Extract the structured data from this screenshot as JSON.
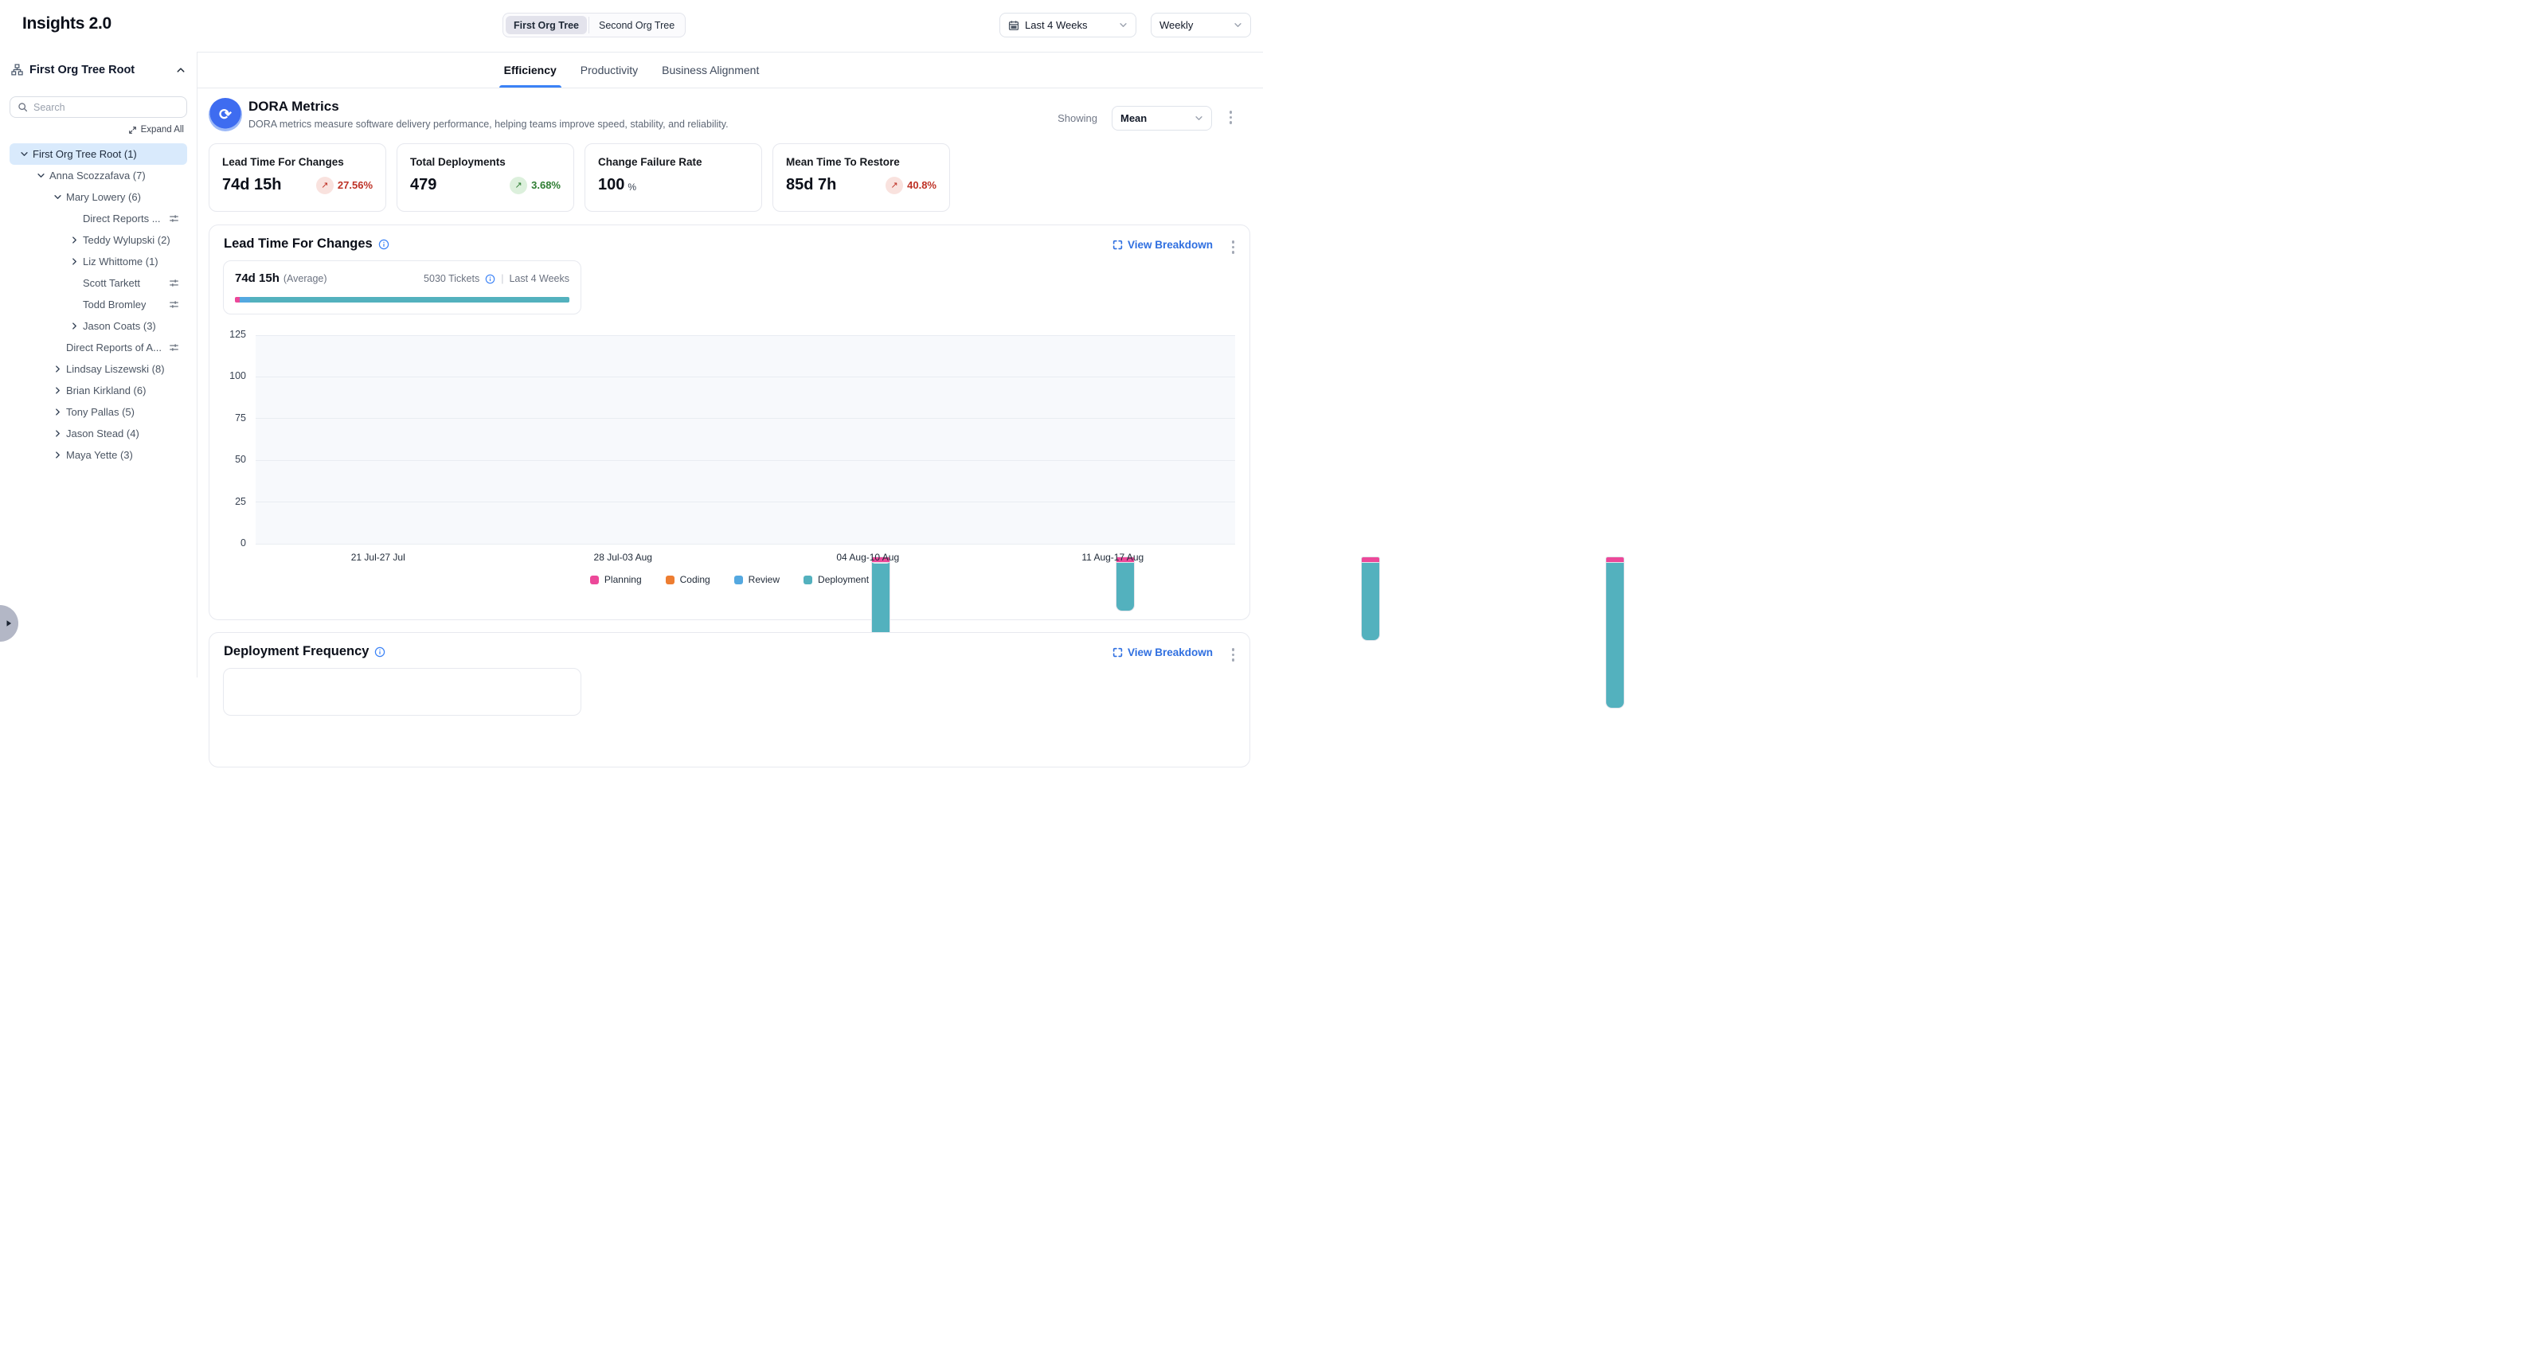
{
  "app": {
    "title": "Insights 2.0"
  },
  "header": {
    "org_tree_toggle": [
      "First Org Tree",
      "Second Org Tree"
    ],
    "selected_org_tree": "First Org Tree",
    "date_range": "Last 4 Weeks",
    "granularity": "Weekly"
  },
  "sidebar": {
    "root_label": "First Org Tree Root",
    "search_placeholder": "Search",
    "expand_all": "Expand All",
    "tree": [
      {
        "label": "First Org Tree Root (1)",
        "level": 0,
        "chevron": "down",
        "selected": true,
        "filter": false
      },
      {
        "label": "Anna Scozzafava (7)",
        "level": 1,
        "chevron": "down",
        "filter": false
      },
      {
        "label": "Mary Lowery (6)",
        "level": 2,
        "chevron": "down",
        "filter": false
      },
      {
        "label": "Direct Reports ...",
        "level": 3,
        "chevron": "none",
        "filter": true
      },
      {
        "label": "Teddy Wylupski (2)",
        "level": 3,
        "chevron": "right",
        "filter": false
      },
      {
        "label": "Liz Whittome (1)",
        "level": 3,
        "chevron": "right",
        "filter": false
      },
      {
        "label": "Scott Tarkett",
        "level": 3,
        "chevron": "none",
        "filter": true
      },
      {
        "label": "Todd Bromley",
        "level": 3,
        "chevron": "none",
        "filter": true
      },
      {
        "label": "Jason Coats (3)",
        "level": 3,
        "chevron": "right",
        "filter": false
      },
      {
        "label": "Direct Reports of A...",
        "level": 2,
        "chevron": "none",
        "filter": true
      },
      {
        "label": "Lindsay Liszewski (8)",
        "level": 2,
        "chevron": "right",
        "filter": false
      },
      {
        "label": "Brian Kirkland (6)",
        "level": 2,
        "chevron": "right",
        "filter": false
      },
      {
        "label": "Tony Pallas (5)",
        "level": 2,
        "chevron": "right",
        "filter": false
      },
      {
        "label": "Jason Stead (4)",
        "level": 2,
        "chevron": "right",
        "filter": false
      },
      {
        "label": "Maya Yette (3)",
        "level": 2,
        "chevron": "right",
        "filter": false
      }
    ]
  },
  "tabs": [
    {
      "label": "Efficiency",
      "active": true
    },
    {
      "label": "Productivity",
      "active": false
    },
    {
      "label": "Business Alignment",
      "active": false
    }
  ],
  "dora": {
    "title": "DORA Metrics",
    "subtitle": "DORA metrics measure software delivery performance, helping teams improve speed, stability, and reliability.",
    "showing_label": "Showing",
    "showing_value": "Mean",
    "cards": [
      {
        "label": "Lead Time For Changes",
        "value": "74d 15h",
        "delta": "27.56%",
        "direction": "up",
        "tone": "negative"
      },
      {
        "label": "Total Deployments",
        "value": "479",
        "delta": "3.68%",
        "direction": "up",
        "tone": "positive"
      },
      {
        "label": "Change Failure Rate",
        "value": "100",
        "suffix": "%"
      },
      {
        "label": "Mean Time To Restore",
        "value": "85d 7h",
        "delta": "40.8%",
        "direction": "up",
        "tone": "negative"
      }
    ]
  },
  "lead_time_section": {
    "title": "Lead Time For Changes",
    "view_breakdown": "View Breakdown",
    "summary": {
      "value": "74d 15h",
      "qualifier": "(Average)",
      "tickets": "5030 Tickets",
      "divider": "|",
      "period": "Last 4 Weeks",
      "bar_segments": [
        {
          "name": "Planning",
          "pct": 1.5
        },
        {
          "name": "Review",
          "pct": 3.0
        },
        {
          "name": "Deployment",
          "pct": 95.5
        }
      ]
    }
  },
  "chart_data": {
    "type": "bar",
    "stacked": true,
    "title": "Lead Time For Changes",
    "categories": [
      "21 Jul-27 Jul",
      "28 Jul-03 Aug",
      "04 Aug-10 Aug",
      "11 Aug-17 Aug"
    ],
    "series": [
      {
        "name": "Planning",
        "color": "#EC4899",
        "values": [
          0.8,
          3.0,
          0.8,
          2.4
        ]
      },
      {
        "name": "Coding",
        "color": "#ED7D31",
        "values": [
          0,
          0,
          0,
          0
        ]
      },
      {
        "name": "Review",
        "color": "#54A8E0",
        "values": [
          4.5,
          0.5,
          0.4,
          2.5
        ]
      },
      {
        "name": "Deployment",
        "color": "#53B1BE",
        "values": [
          53,
          33,
          50.7,
          91
        ]
      }
    ],
    "stack_order": [
      "Deployment",
      "Review",
      "Coding",
      "Planning"
    ],
    "ylim": [
      0,
      125
    ],
    "yticks": [
      0,
      25,
      50,
      75,
      100,
      125
    ],
    "xlabel": "",
    "ylabel": "",
    "grid": true,
    "legend_position": "bottom"
  },
  "deployment_section": {
    "title": "Deployment Frequency",
    "view_breakdown": "View Breakdown"
  },
  "colors": {
    "accent_blue": "#3B82F6",
    "link_blue": "#2F6FE0",
    "selected_row_bg": "#D9EAFC",
    "negative_red": "#BE3226",
    "positive_green": "#2E7D32",
    "planning_pink": "#EC4899",
    "coding_orange": "#ED7D31",
    "review_blue": "#54A8E0",
    "deployment_teal": "#53B1BE"
  }
}
